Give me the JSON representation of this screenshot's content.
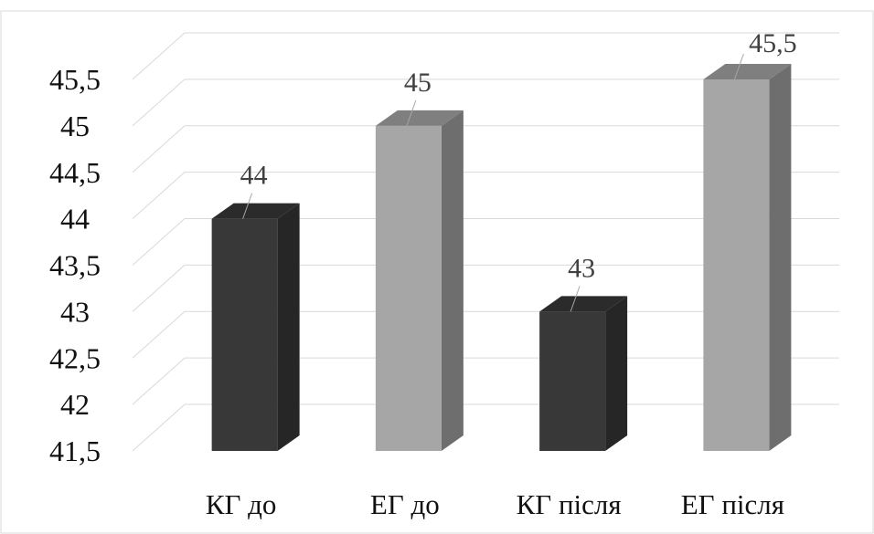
{
  "chart_data": {
    "type": "bar",
    "categories": [
      "КГ до",
      "ЕГ до",
      "КГ після",
      "ЕГ після"
    ],
    "values": [
      44,
      45,
      43,
      45.5
    ],
    "data_labels": [
      "44",
      "45",
      "43",
      "45,5"
    ],
    "y_tick_labels": [
      "41,5",
      "42",
      "42,5",
      "43",
      "43,5",
      "44",
      "44,5",
      "45",
      "45,5"
    ],
    "ylim": [
      41.5,
      45.5
    ],
    "title": "",
    "xlabel": "",
    "ylabel": "",
    "grid": true,
    "three_d": true,
    "colors": [
      "#383838",
      "#a6a6a6",
      "#383838",
      "#a6a6a6"
    ],
    "side_colors": [
      "#262626",
      "#6e6e6e",
      "#262626",
      "#6e6e6e"
    ],
    "top_colors": [
      "#2b2b2b",
      "#7f7f7f",
      "#2b2b2b",
      "#7f7f7f"
    ]
  }
}
